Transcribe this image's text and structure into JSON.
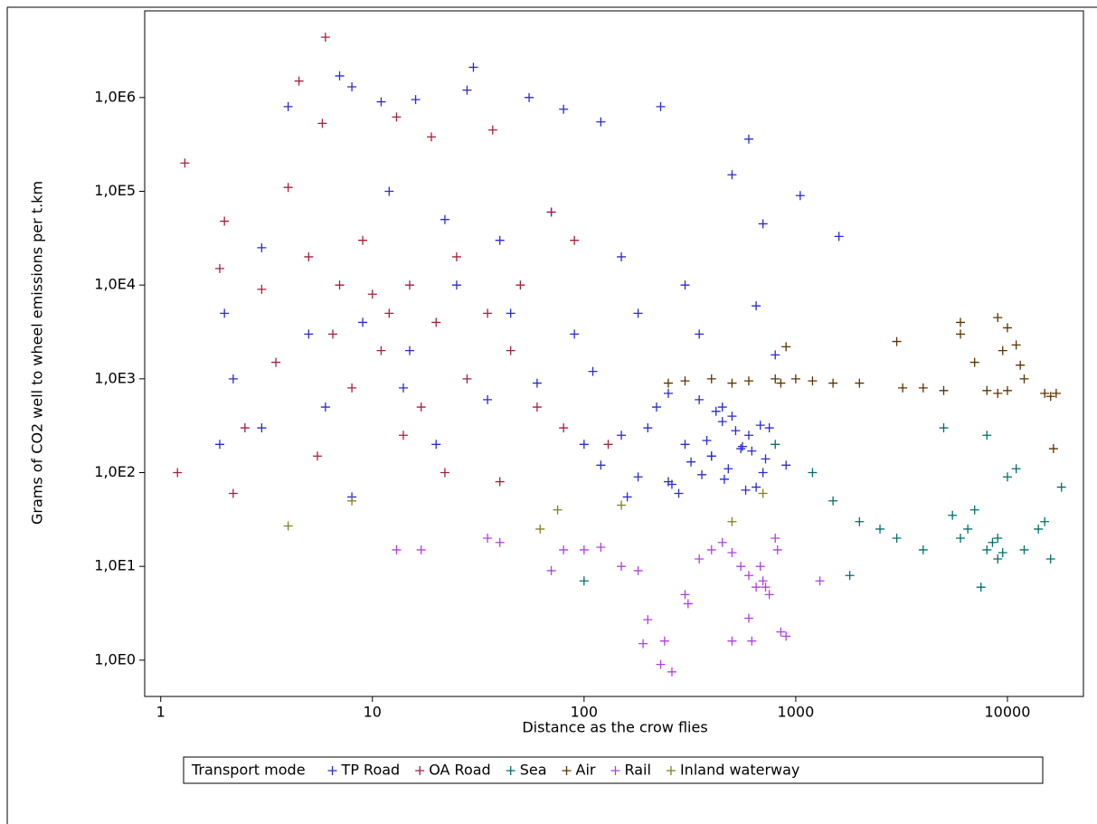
{
  "chart_data": {
    "type": "scatter",
    "x_label": "Distance as the crow flies",
    "y_label": "Grams of CO2 well to wheel emissions per t.km",
    "legend_title": "Transport mode",
    "legend_position": "bottom",
    "x_log": true,
    "y_log": true,
    "xlim": [
      0.84,
      22860
    ],
    "ylim": [
      0.41,
      8400000
    ],
    "xticks": [
      1,
      10,
      100,
      1000,
      10000
    ],
    "yticks": [
      {
        "value": 1,
        "label": "1,0E0"
      },
      {
        "value": 10,
        "label": "1,0E1"
      },
      {
        "value": 100,
        "label": "1,0E2"
      },
      {
        "value": 1000,
        "label": "1,0E3"
      },
      {
        "value": 10000,
        "label": "1,0E4"
      },
      {
        "value": 100000,
        "label": "1,0E5"
      },
      {
        "value": 1000000,
        "label": "1,0E6"
      }
    ],
    "series": [
      {
        "name": "TP Road",
        "color": "#2a2ad4",
        "x": [
          4,
          7,
          8,
          11,
          16,
          30,
          28,
          55,
          80,
          120,
          230,
          600,
          1050,
          1600,
          12,
          22,
          40,
          70,
          150,
          300,
          500,
          700,
          2,
          3,
          5,
          9,
          15,
          25,
          45,
          90,
          180,
          350,
          650,
          800,
          2.2,
          6,
          14,
          35,
          60,
          110,
          250,
          450,
          750,
          3,
          20,
          100,
          400,
          900,
          1.9,
          8,
          200,
          300,
          400,
          500,
          600,
          700,
          250,
          350,
          450,
          550,
          650,
          150,
          120,
          180,
          220,
          280,
          320,
          380,
          420,
          480,
          520,
          580,
          620,
          680,
          720,
          160,
          260,
          360,
          460,
          560
        ],
        "y": [
          800000,
          1700000,
          1300000,
          900000,
          950000,
          2100000,
          1200000,
          1000000,
          750000,
          550000,
          800000,
          360000,
          90000,
          33000,
          100000,
          50000,
          30000,
          60000,
          20000,
          10000,
          150000,
          45000,
          5000,
          25000,
          3000,
          4000,
          2000,
          10000,
          5000,
          3000,
          5000,
          3000,
          6000,
          1800,
          1000,
          500,
          800,
          600,
          900,
          1200,
          700,
          500,
          300,
          300,
          200,
          200,
          150,
          120,
          200,
          55,
          300,
          200,
          150,
          400,
          250,
          100,
          80,
          600,
          350,
          180,
          70,
          250,
          120,
          90,
          500,
          60,
          130,
          220,
          450,
          110,
          280,
          65,
          170,
          320,
          140,
          55,
          75,
          95,
          85,
          190
        ]
      },
      {
        "name": "OA Road",
        "color": "#a8203a",
        "x": [
          1.2,
          1.3,
          6,
          4.5,
          5.8,
          13,
          19,
          37,
          2,
          1.9,
          3,
          4,
          5,
          7,
          9,
          10,
          12,
          15,
          20,
          25,
          35,
          50,
          70,
          90,
          3.5,
          6.5,
          8,
          11,
          17,
          28,
          45,
          60,
          80,
          130,
          2.5,
          5.5,
          14,
          22,
          40,
          2.2
        ],
        "y": [
          100,
          200000,
          4400000,
          1500000,
          530000,
          620000,
          380000,
          450000,
          48000,
          15000,
          9000,
          110000,
          20000,
          10000,
          30000,
          8000,
          5000,
          10000,
          4000,
          20000,
          5000,
          10000,
          60000,
          30000,
          1500,
          3000,
          800,
          2000,
          500,
          1000,
          2000,
          500,
          300,
          200,
          300,
          150,
          250,
          100,
          80,
          60
        ]
      },
      {
        "name": "Sea",
        "color": "#00706b",
        "x": [
          100,
          800,
          1200,
          1500,
          2000,
          3000,
          4000,
          5000,
          6000,
          7000,
          8000,
          9000,
          10000,
          11000,
          14000,
          16000,
          18000,
          7500,
          8500,
          9500,
          6500,
          5500,
          2500,
          1800,
          15000,
          12000,
          8000,
          9000
        ],
        "y": [
          7,
          200,
          100,
          50,
          30,
          20,
          15,
          300,
          20,
          40,
          15,
          12,
          90,
          110,
          25,
          12,
          70,
          6,
          18,
          14,
          25,
          35,
          25,
          8,
          30,
          15,
          250,
          20
        ]
      },
      {
        "name": "Air",
        "color": "#5c3300",
        "x": [
          250,
          300,
          400,
          500,
          600,
          800,
          900,
          1000,
          1200,
          1500,
          2000,
          3000,
          3200,
          4000,
          5000,
          6000,
          7000,
          8000,
          9000,
          10000,
          11000,
          12000,
          15000,
          16000,
          17000,
          6000,
          9000,
          9500,
          11500,
          850,
          10000,
          16500
        ],
        "y": [
          900,
          950,
          1000,
          900,
          950,
          1000,
          2200,
          1000,
          950,
          900,
          900,
          2500,
          800,
          800,
          750,
          4000,
          1500,
          750,
          4500,
          3500,
          2300,
          1000,
          700,
          650,
          700,
          3000,
          700,
          2000,
          1400,
          900,
          750,
          180
        ]
      },
      {
        "name": "Rail",
        "color": "#b040e0",
        "x": [
          13,
          17,
          35,
          40,
          70,
          80,
          100,
          120,
          150,
          180,
          200,
          230,
          260,
          300,
          350,
          400,
          450,
          500,
          550,
          600,
          650,
          700,
          750,
          800,
          850,
          900,
          1300,
          190,
          240,
          310,
          500,
          600,
          620,
          680,
          720,
          820
        ],
        "y": [
          15,
          15,
          20,
          18,
          9,
          15,
          15,
          16,
          10,
          9,
          2.7,
          0.9,
          0.75,
          5,
          12,
          15,
          18,
          14,
          10,
          8,
          6,
          7,
          5,
          20,
          2,
          1.8,
          7,
          1.5,
          1.6,
          4,
          1.6,
          2.8,
          1.6,
          10,
          6,
          15
        ]
      },
      {
        "name": "Inland waterway",
        "color": "#808020",
        "x": [
          4,
          8,
          62,
          75,
          500,
          700,
          150
        ],
        "y": [
          27,
          50,
          25,
          40,
          30,
          60,
          45
        ]
      }
    ]
  }
}
